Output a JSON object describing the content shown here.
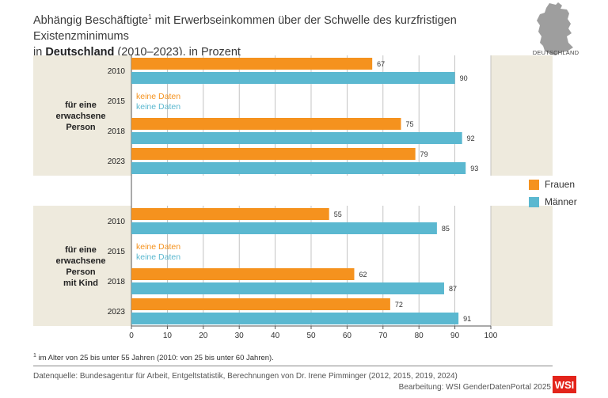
{
  "title": {
    "line1": "Abhängig Beschäftigte",
    "sup": "1",
    "line1_rest": " mit Erwerbseinkommen über der Schwelle des kurzfristigen Existenzminimums",
    "line2_pre": "in ",
    "line2_bold": "Deutschland",
    "line2_post": " (2010–2023), in Prozent"
  },
  "map_label": "DEUTSCHLAND",
  "colors": {
    "frauen": "#f5921e",
    "maenner": "#5bb8d0",
    "band": "#eeeadd",
    "no_data_frauen": "#f5921e",
    "no_data_maenner": "#5bb8d0"
  },
  "legend": {
    "frauen": "Frauen",
    "maenner": "Männer"
  },
  "footnote": {
    "sup": "1",
    "text": " im Alter von 25 bis unter 55 Jahren (2010: von 25 bis unter 60 Jahren)."
  },
  "source": "Datenquelle: Bundesagentur für Arbeit, Entgeltstatistik, Berechnungen von Dr. Irene Pimminger (2012, 2015, 2019, 2024)",
  "credit": "Bearbeitung: WSI GenderDatenPortal 2025",
  "logo": "WSI",
  "chart_data": {
    "type": "bar",
    "orientation": "horizontal",
    "xlim": [
      0,
      100
    ],
    "xticks": [
      0,
      10,
      20,
      30,
      40,
      50,
      60,
      70,
      80,
      90,
      100
    ],
    "grid": true,
    "legend_position": "right",
    "no_data_label": "keine Daten",
    "groups": [
      {
        "label": [
          "für eine",
          "erwachsene",
          "Person"
        ],
        "years": [
          {
            "year": "2010",
            "frauen": 67,
            "maenner": 90
          },
          {
            "year": "2015",
            "frauen": null,
            "maenner": null
          },
          {
            "year": "2018",
            "frauen": 75,
            "maenner": 92
          },
          {
            "year": "2023",
            "frauen": 79,
            "maenner": 93
          }
        ]
      },
      {
        "label": [
          "für eine",
          "erwachsene",
          "Person",
          "mit Kind"
        ],
        "years": [
          {
            "year": "2010",
            "frauen": 55,
            "maenner": 85
          },
          {
            "year": "2015",
            "frauen": null,
            "maenner": null
          },
          {
            "year": "2018",
            "frauen": 62,
            "maenner": 87
          },
          {
            "year": "2023",
            "frauen": 72,
            "maenner": 91
          }
        ]
      }
    ]
  }
}
